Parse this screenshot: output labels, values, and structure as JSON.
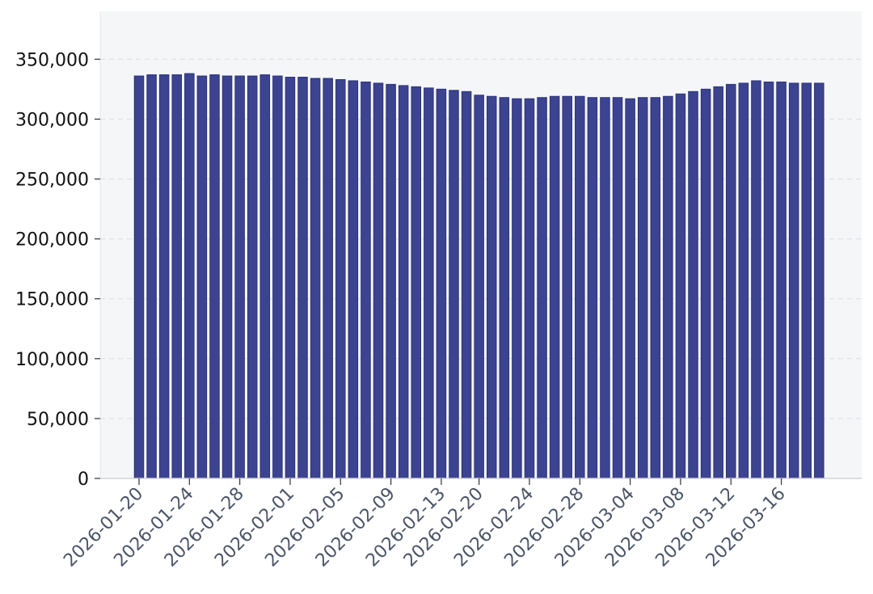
{
  "chart_data": {
    "type": "bar",
    "title": "",
    "xlabel": "",
    "ylabel": "",
    "ylim": [
      0,
      390000
    ],
    "yticks": [
      0,
      50000,
      100000,
      150000,
      200000,
      250000,
      300000,
      350000
    ],
    "ytick_labels": [
      "0",
      "50,000",
      "100,000",
      "150,000",
      "200,000",
      "250,000",
      "300,000",
      "350,000"
    ],
    "grid": "horizontal dashed",
    "legend": "none",
    "colors": {
      "bar": "#3c4491",
      "bar_edge": "#2c3276",
      "plot_background": "#f5f6f8",
      "grid": "#d9dce3"
    },
    "categories": [
      "2026-01-20",
      "2026-01-21",
      "2026-01-22",
      "2026-01-23",
      "2026-01-24",
      "2026-01-25",
      "2026-01-26",
      "2026-01-27",
      "2026-01-28",
      "2026-01-29",
      "2026-01-30",
      "2026-01-31",
      "2026-02-01",
      "2026-02-02",
      "2026-02-03",
      "2026-02-04",
      "2026-02-05",
      "2026-02-06",
      "2026-02-07",
      "2026-02-08",
      "2026-02-09",
      "2026-02-10",
      "2026-02-11",
      "2026-02-12",
      "2026-02-13",
      "2026-02-14",
      "2026-02-15",
      "2026-02-20",
      "2026-02-21",
      "2026-02-22",
      "2026-02-23",
      "2026-02-24",
      "2026-02-25",
      "2026-02-26",
      "2026-02-27",
      "2026-02-28",
      "2026-03-01",
      "2026-03-02",
      "2026-03-03",
      "2026-03-04",
      "2026-03-05",
      "2026-03-06",
      "2026-03-07",
      "2026-03-08",
      "2026-03-09",
      "2026-03-10",
      "2026-03-11",
      "2026-03-12",
      "2026-03-13",
      "2026-03-14",
      "2026-03-15",
      "2026-03-16",
      "2026-03-17",
      "2026-03-18",
      "2026-03-19"
    ],
    "values": [
      336000,
      337000,
      337000,
      337000,
      338000,
      336000,
      337000,
      336000,
      336000,
      336000,
      337000,
      336000,
      335000,
      335000,
      334000,
      334000,
      333000,
      332000,
      331000,
      330000,
      329000,
      328000,
      327000,
      326000,
      325000,
      324000,
      323000,
      320000,
      319000,
      318000,
      317000,
      317000,
      318000,
      319000,
      319000,
      319000,
      318000,
      318000,
      318000,
      317000,
      318000,
      318000,
      319000,
      321000,
      323000,
      325000,
      327000,
      329000,
      330000,
      332000,
      331000,
      331000,
      330000,
      330000,
      330000
    ],
    "xtick_labels": [
      "2026-01-20",
      "2026-01-24",
      "2026-01-28",
      "2026-02-01",
      "2026-02-05",
      "2026-02-09",
      "2026-02-13",
      "2026-02-20",
      "2026-02-24",
      "2026-02-28",
      "2026-03-04",
      "2026-03-08",
      "2026-03-12",
      "2026-03-16"
    ]
  }
}
